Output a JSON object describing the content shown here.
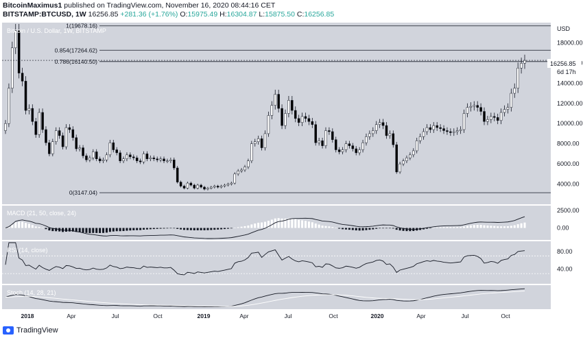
{
  "header": {
    "publisher": "BitcoinMaximus1",
    "published_text": " published on TradingView.com, November 16, 2020 08:44:16 CET",
    "symbol": "BITSTAMP:BTCUSD, 1W",
    "last": "16256.85",
    "change": "+281.36 (+1.76%)",
    "o_label": "O:",
    "o_value": "15975.49",
    "h_label": "H:",
    "h_value": "16304.87",
    "l_label": "L:",
    "l_value": "15875.50",
    "c_label": "C:",
    "c_value": "16256.85"
  },
  "branding": {
    "name": "TradingView"
  },
  "colors": {
    "background": "#ffffff",
    "plot_bg": "#d1d4dc",
    "up": "#ffffff",
    "down": "#000000",
    "accent": "#26a69a"
  },
  "chart_data": [
    {
      "type": "candlestick",
      "title": "Bitcoin / U.S. Dollar, 1W, BITSTAMP",
      "currency": "USD",
      "ylim": [
        2000,
        20000
      ],
      "y_ticks": [
        4000,
        6000,
        8000,
        10000,
        12000,
        14000,
        16000,
        18000
      ],
      "x_ticks": [
        "2018",
        "Apr",
        "Jul",
        "Oct",
        "2019",
        "Apr",
        "Jul",
        "Oct",
        "2020",
        "Apr",
        "Jul",
        "Oct"
      ],
      "last_price_label": "16256.85",
      "countdown_label": "6d 17h",
      "fib_levels": [
        {
          "label": "0(3147.04)",
          "value": 3147.04
        },
        {
          "label": "0.786(16140.50)",
          "value": 16140.5
        },
        {
          "label": "0.854(17264.62)",
          "value": 17264.62
        },
        {
          "label": "1(19678.16)",
          "value": 19678.16
        }
      ],
      "close": [
        10000,
        13500,
        17500,
        19200,
        15000,
        14200,
        11300,
        11500,
        10200,
        8900,
        11100,
        9400,
        8100,
        7000,
        8200,
        9300,
        8800,
        7700,
        9600,
        9400,
        8600,
        7500,
        7600,
        6800,
        6400,
        6600,
        7200,
        6500,
        6300,
        6400,
        6900,
        8100,
        7400,
        7100,
        6300,
        6500,
        6900,
        6700,
        6600,
        6300,
        6200,
        7000,
        6500,
        6600,
        6500,
        6400,
        6500,
        6300,
        6300,
        6400,
        5600,
        4200,
        3800,
        3600,
        4100,
        3900,
        3600,
        3900,
        3700,
        3500,
        3600,
        3700,
        3800,
        3700,
        3800,
        3900,
        4000,
        4100,
        5000,
        5300,
        5400,
        5700,
        6300,
        8000,
        8200,
        8500,
        7600,
        9000,
        10800,
        11800,
        12900,
        11500,
        9800,
        11000,
        12300,
        11300,
        10500,
        10100,
        10700,
        10500,
        10200,
        9900,
        8100,
        8300,
        7800,
        9300,
        9200,
        8400,
        7400,
        7200,
        7400,
        8000,
        7800,
        7500,
        7100,
        7400,
        8100,
        8700,
        9000,
        9300,
        9900,
        10100,
        9800,
        8800,
        9000,
        7900,
        5200,
        6000,
        6300,
        6600,
        6900,
        7300,
        8300,
        8700,
        9200,
        9600,
        9400,
        9800,
        9600,
        9500,
        9300,
        9200,
        9100,
        9200,
        9300,
        9400,
        11000,
        11600,
        11700,
        11800,
        11600,
        11200,
        10200,
        10400,
        10700,
        10600,
        10300,
        11100,
        11400,
        11600,
        13000,
        13500,
        15500,
        15975,
        16257
      ],
      "macd_ticks": [
        0,
        2500
      ],
      "rsi_ticks": [
        40,
        80
      ]
    },
    {
      "type": "line",
      "title": "MACD (21, 50, close, 24)"
    },
    {
      "type": "line",
      "title": "RSI (14, close)"
    },
    {
      "type": "line",
      "title": "Stoch (14, 28, 21)"
    }
  ]
}
